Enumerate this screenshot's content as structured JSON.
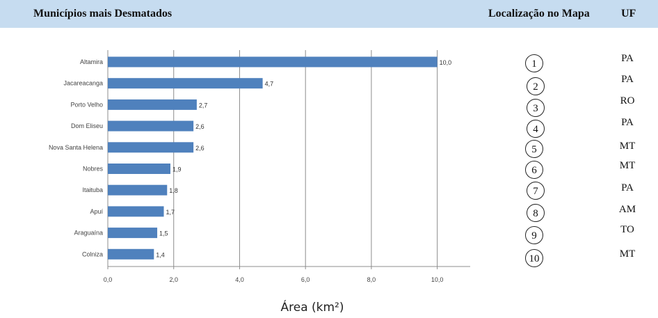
{
  "header": {
    "title": "Municípios mais Desmatados",
    "map_location": "Localização no Mapa",
    "uf": "UF"
  },
  "chart_data": {
    "type": "bar",
    "orientation": "horizontal",
    "categories": [
      "Altamira",
      "Jacareacanga",
      "Porto Velho",
      "Dom Eliseu",
      "Nova Santa Helena",
      "Nobres",
      "Itaituba",
      "Apuí",
      "Araguaína",
      "Colniza"
    ],
    "values": [
      10.0,
      4.7,
      2.7,
      2.6,
      2.6,
      1.9,
      1.8,
      1.7,
      1.5,
      1.4
    ],
    "value_labels": [
      "10,0",
      "4,7",
      "2,7",
      "2,6",
      "2,6",
      "1,9",
      "1,8",
      "1,7",
      "1,5",
      "1,4"
    ],
    "xticks": [
      0,
      2,
      4,
      6,
      8,
      10
    ],
    "xtick_labels": [
      "0,0",
      "2,0",
      "4,0",
      "6,0",
      "8,0",
      "10,0"
    ],
    "xlim": [
      0,
      11
    ],
    "xlabel": "Área (km²)",
    "grid": "vertical",
    "bar_color": "#4f81bd"
  },
  "map_locations": [
    "1",
    "2",
    "3",
    "4",
    "5",
    "6",
    "7",
    "8",
    "9",
    "10"
  ],
  "uf_list": [
    "PA",
    "PA",
    "RO",
    "PA",
    "MT",
    "MT",
    "PA",
    "AM",
    "TO",
    "MT"
  ]
}
